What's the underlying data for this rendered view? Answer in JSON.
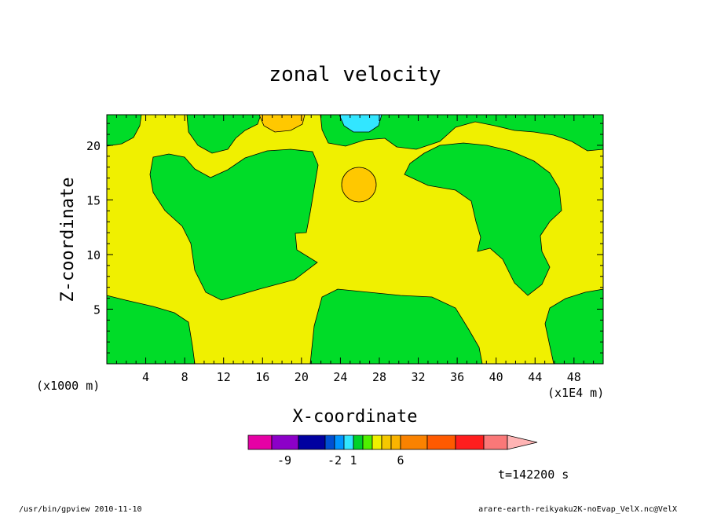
{
  "chart_data": {
    "type": "contour",
    "title": "zonal velocity",
    "xlabel": "X-coordinate",
    "ylabel": "Z-coordinate",
    "x_unit_label": "(x1E4 m)",
    "y_unit_label": "(x1000 m)",
    "xlim": [
      0,
      51
    ],
    "ylim": [
      0,
      22.8
    ],
    "x_ticks": [
      4,
      8,
      12,
      16,
      20,
      24,
      28,
      32,
      36,
      40,
      44,
      48
    ],
    "y_ticks": [
      5,
      10,
      15,
      20
    ],
    "time_label": "t=142200 s",
    "colorbar": {
      "labels": [
        {
          "text": "-9",
          "value": -9
        },
        {
          "text": "-2",
          "value": -2
        },
        {
          "text": "1",
          "value": 1
        },
        {
          "text": "6",
          "value": 6
        }
      ],
      "colors": [
        "#e600a5",
        "#8c00c8",
        "#0000a0",
        "#0050d2",
        "#0096ff",
        "#32e6ff",
        "#00d228",
        "#50f000",
        "#f0f000",
        "#f5c800",
        "#fab400",
        "#fa8200",
        "#ff5a00",
        "#ff1e1e",
        "#fa7878",
        "#ffb4b4"
      ]
    },
    "regions": {
      "background_color": "#f0f000",
      "positive_color": "#ffc800",
      "negative_light_color": "#00dc28",
      "negative_strong_color": "#32e6ff"
    }
  },
  "footer": {
    "left": "/usr/bin/gpview   2010-11-10",
    "right": "arare-earth-reikyaku2K-noEvap_VelX.nc@VelX"
  }
}
